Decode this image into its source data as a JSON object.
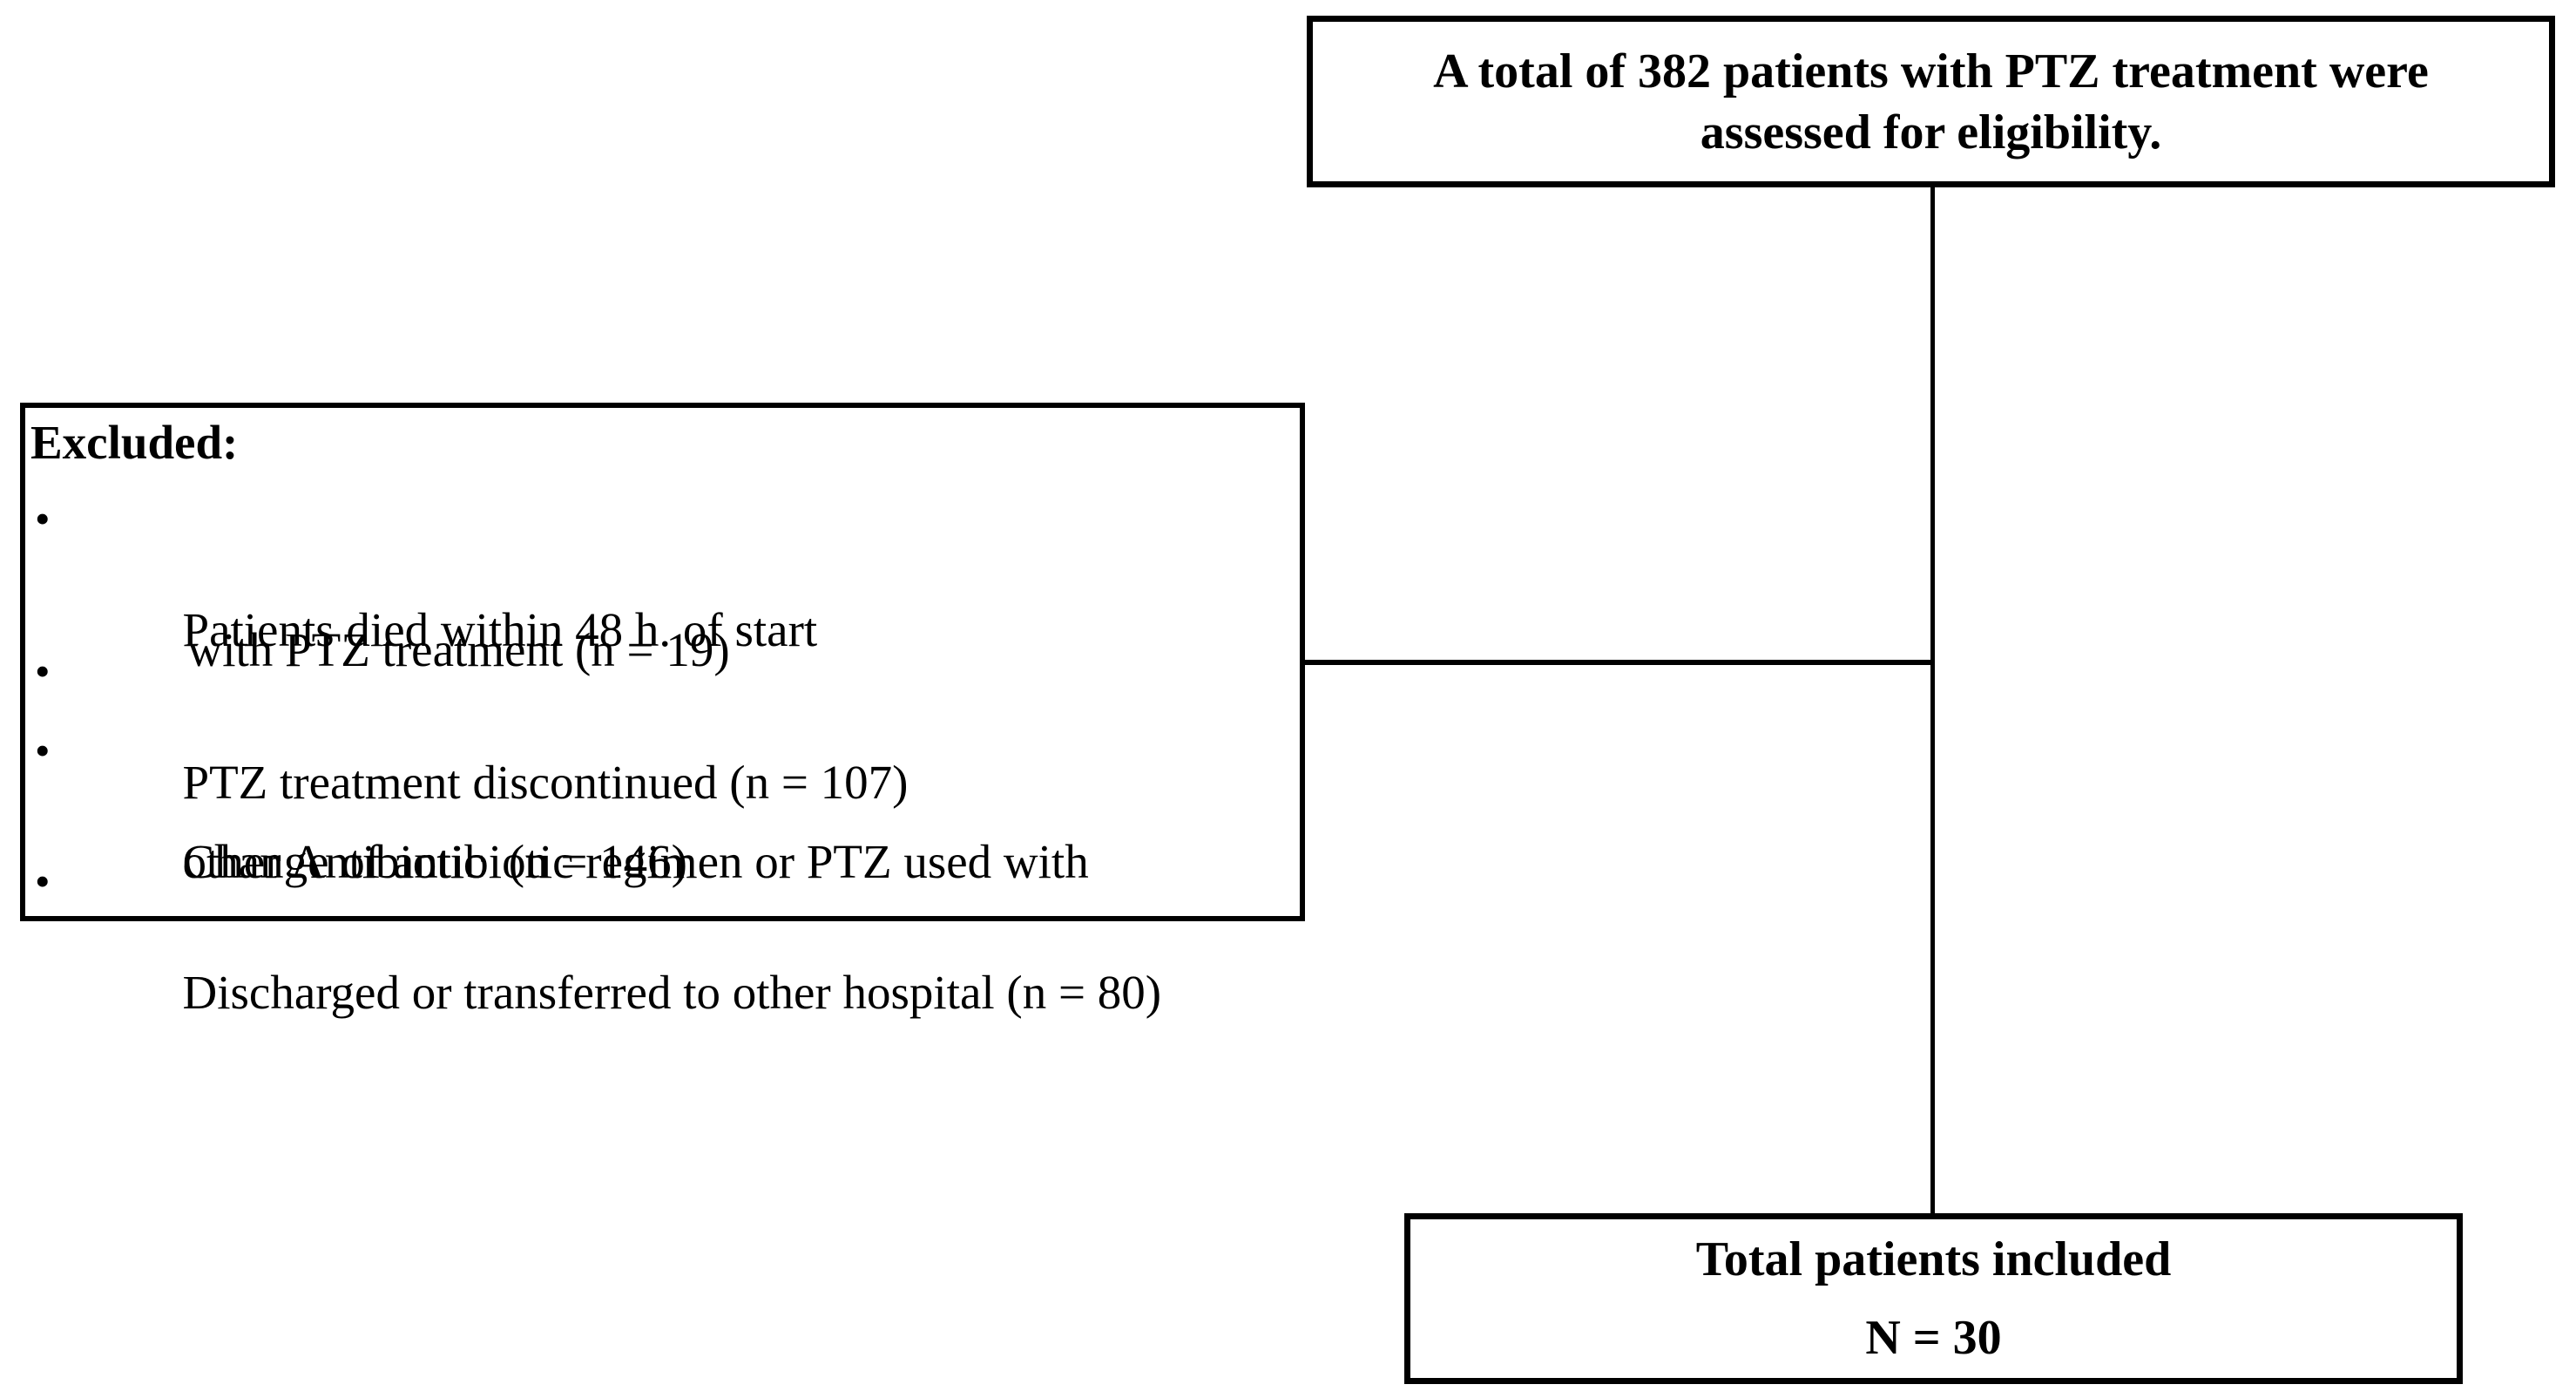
{
  "colors": {
    "background": "#ffffff",
    "border": "#000000",
    "text": "#000000"
  },
  "top_box": {
    "line1": "A total of 382 patients with PTZ treatment were",
    "line2": "assessed for eligibility."
  },
  "excluded_box": {
    "title": "Excluded:",
    "bullet": "•",
    "items": [
      {
        "lines": [
          "Patients died within 48 h. of start",
          "with PTZ treatment (n = 19)"
        ]
      },
      {
        "lines": [
          "PTZ treatment discontinued (n = 107)"
        ]
      },
      {
        "lines": [
          "Change of antibiotic regimen or PTZ used with",
          "other Antibiotic  (n = 146)"
        ]
      },
      {
        "lines": [
          "Discharged or transferred to other hospital (n = 80)"
        ]
      }
    ]
  },
  "included_box": {
    "line1": "Total patients included",
    "line2": "N = 30"
  }
}
